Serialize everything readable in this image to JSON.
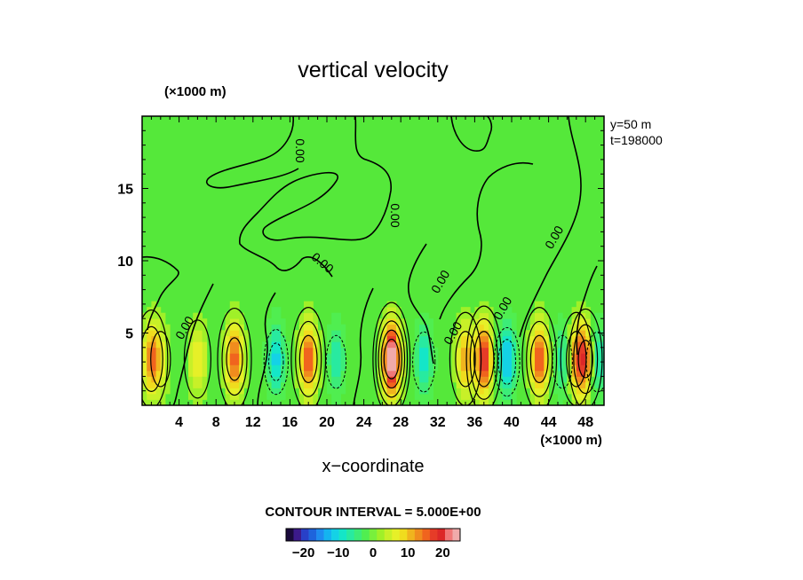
{
  "chart_data": {
    "type": "heatmap",
    "title": "vertical velocity",
    "xlabel": "x−coordinate",
    "x_unit": "(×1000 m)",
    "y_unit": "(×1000 m)",
    "xlim": [
      0,
      50
    ],
    "ylim": [
      0,
      20
    ],
    "x_ticks": [
      4,
      8,
      12,
      16,
      20,
      24,
      28,
      32,
      36,
      40,
      44,
      48
    ],
    "x_tick_labels": [
      "4",
      "8",
      "12",
      "16",
      "20",
      "24",
      "28",
      "32",
      "36",
      "40",
      "44",
      "48"
    ],
    "y_ticks": [
      5,
      10,
      15
    ],
    "y_tick_labels": [
      "5",
      "10",
      "15"
    ],
    "info_lines": [
      "y=50  m",
      "t=198000"
    ],
    "contour_interval_text": "CONTOUR INTERVAL = 5.000E+00",
    "zero_contour_label": "0.00",
    "colorbar": {
      "range": [
        -25,
        25
      ],
      "tick_values": [
        -20,
        -10,
        0,
        10,
        20
      ],
      "tick_labels": [
        "−20",
        "−10",
        "0",
        "10",
        "20"
      ],
      "colors": [
        "#1a0a3c",
        "#3c1a8c",
        "#2840c8",
        "#1e64dc",
        "#1e8cf0",
        "#14b4f0",
        "#14d2e6",
        "#14e6c8",
        "#28eaa0",
        "#3cec78",
        "#50ee50",
        "#78f03c",
        "#a0f028",
        "#c8f028",
        "#e6f028",
        "#f0dc1e",
        "#f0b41e",
        "#f08c1e",
        "#f0641e",
        "#e63c28",
        "#dc2828",
        "#f07878",
        "#f0aaaa"
      ]
    },
    "background_color": "#55e83a",
    "updrafts": [
      {
        "x": 1.0,
        "w": 14
      },
      {
        "x": 2.0,
        "w": 5
      },
      {
        "x": 6.0,
        "w": 8
      },
      {
        "x": 10.0,
        "w": 16
      },
      {
        "x": 18.0,
        "w": 17
      },
      {
        "x": 27.0,
        "w": 27
      },
      {
        "x": 35.0,
        "w": 12
      },
      {
        "x": 37.0,
        "w": 19
      },
      {
        "x": 43.0,
        "w": 17
      },
      {
        "x": 47.0,
        "w": 12
      },
      {
        "x": 48.0,
        "w": 15
      }
    ],
    "downdrafts": [
      {
        "x": 14.5,
        "w": -11
      },
      {
        "x": 21.0,
        "w": -7
      },
      {
        "x": 30.5,
        "w": -9
      },
      {
        "x": 39.5,
        "w": -13
      },
      {
        "x": 45.5,
        "w": -7
      },
      {
        "x": 49.3,
        "w": -9
      }
    ]
  }
}
